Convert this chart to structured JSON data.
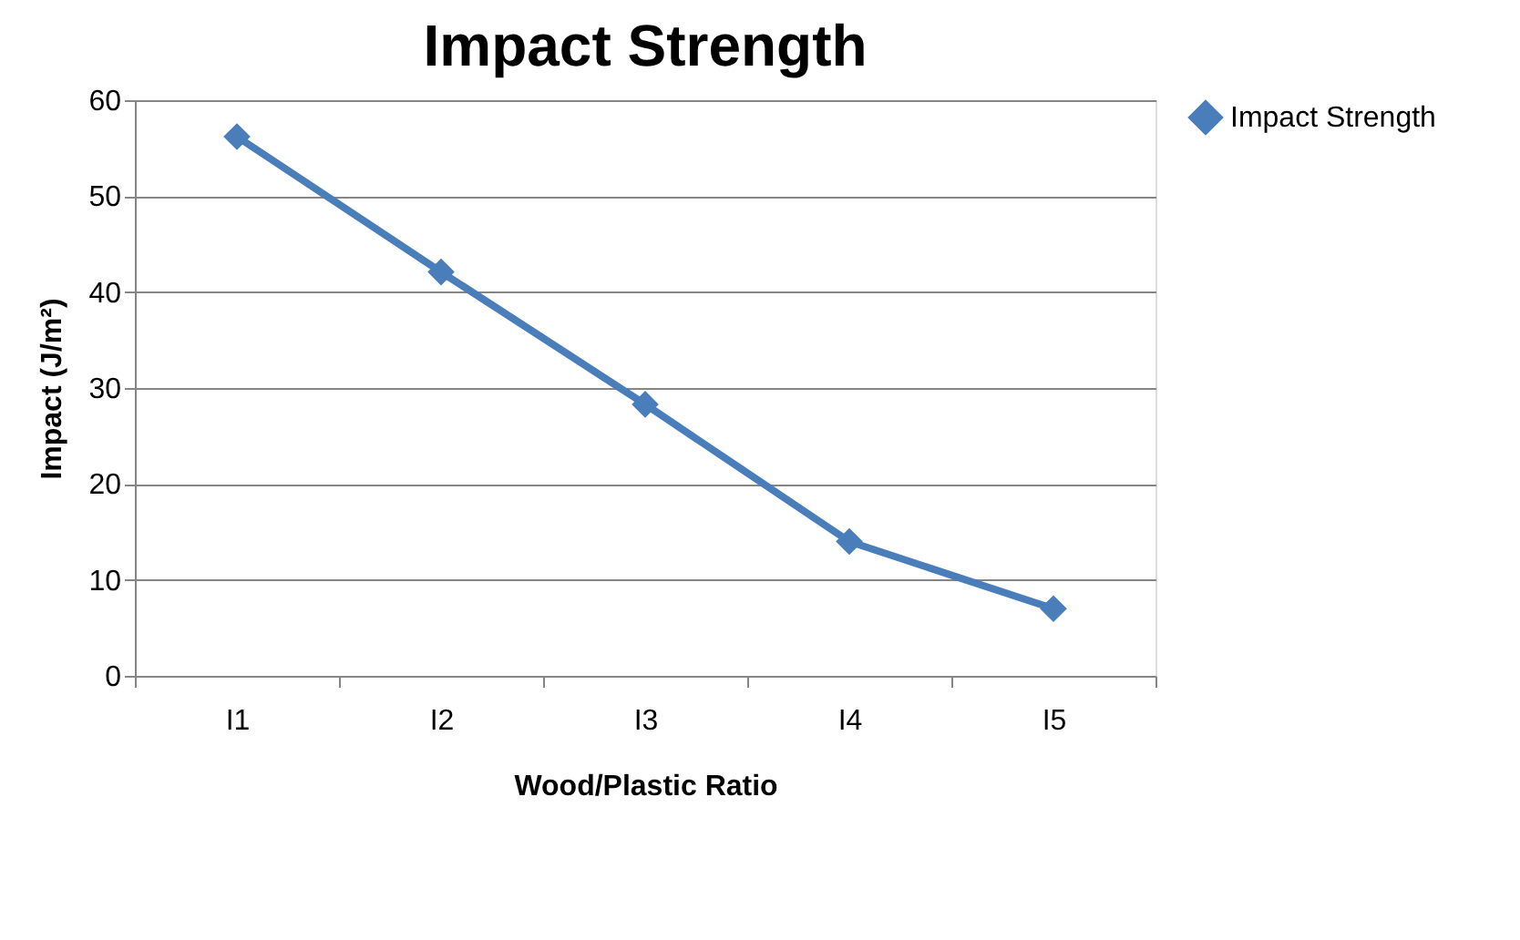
{
  "chart_data": {
    "type": "line",
    "title": "Impact Strength",
    "xlabel": "Wood/Plastic Ratio",
    "ylabel": "Impact (J/m²)",
    "categories": [
      "I1",
      "I2",
      "I3",
      "I4",
      "I5"
    ],
    "series": [
      {
        "name": "Impact Strength",
        "color": "#4a7ebb",
        "values": [
          56.2,
          42.1,
          28.3,
          14.0,
          7.0
        ]
      }
    ],
    "ylim": [
      0,
      60
    ],
    "yticks": [
      0,
      10,
      20,
      30,
      40,
      50,
      60
    ],
    "grid": "y",
    "legend": "right",
    "marker": "diamond",
    "line_style": "solid"
  }
}
